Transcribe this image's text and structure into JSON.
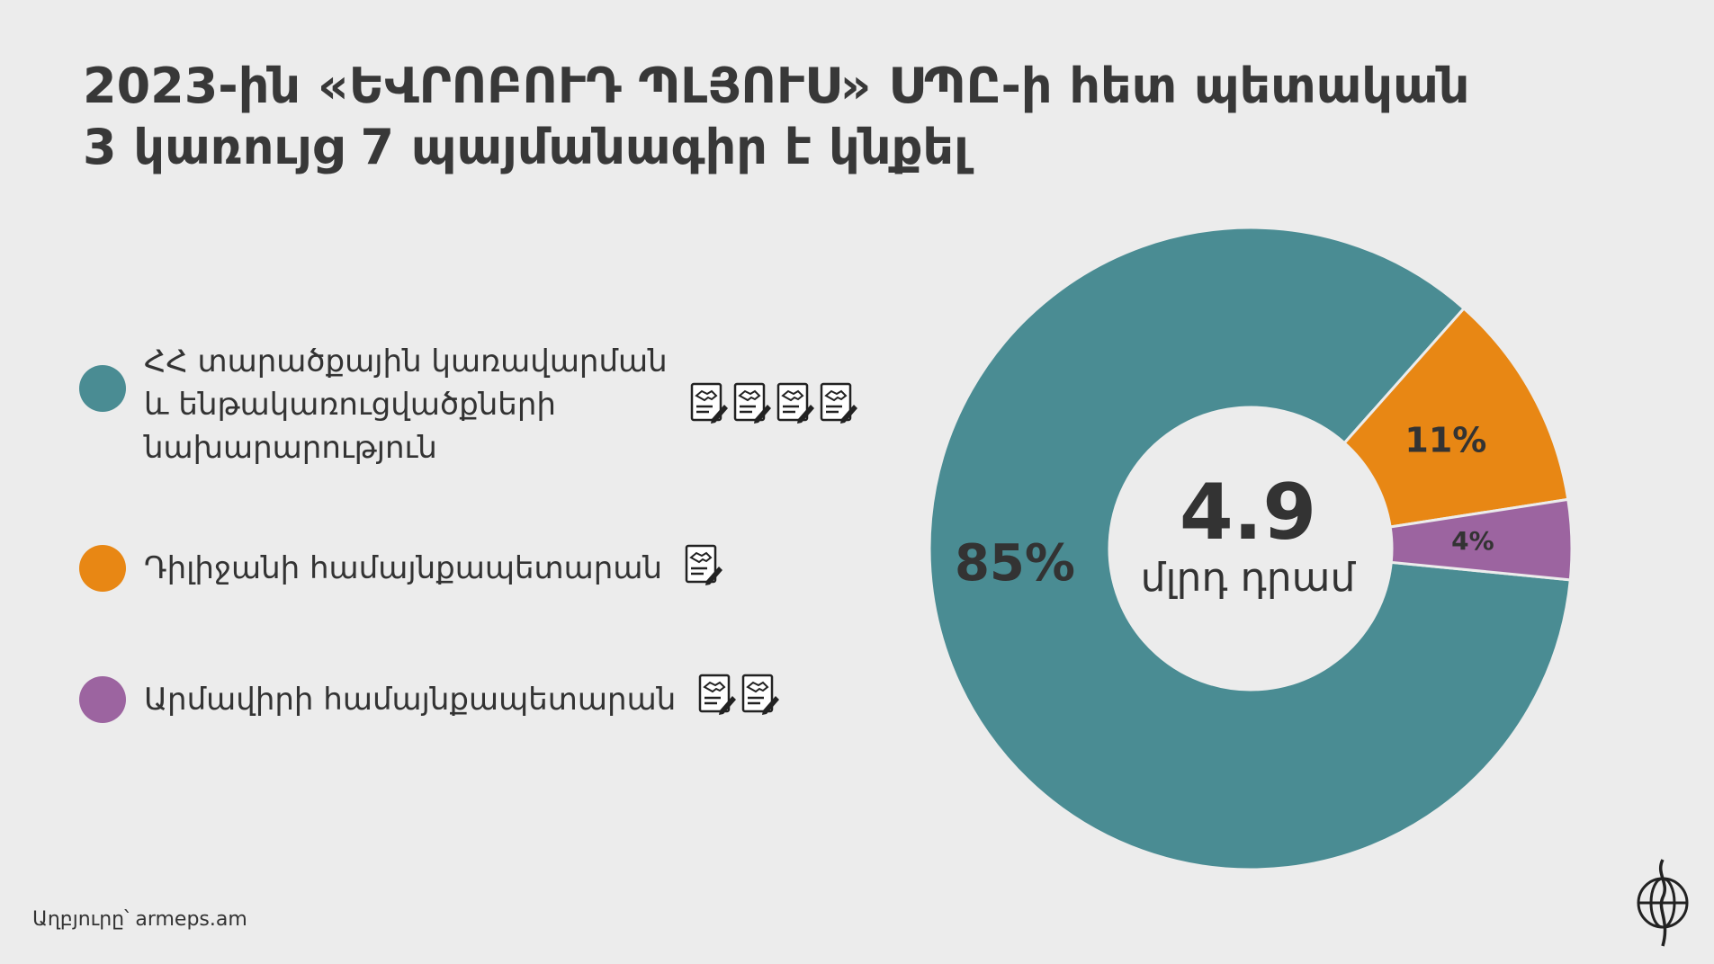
{
  "title": {
    "line1": "2023-ին «ԵՎՐՈԲՈՒԴ ՊԼՅՈՒՍ» ՍՊԸ-ի հետ պետական",
    "line2": "3 կառույց 7 պայմանագիր է կնքել"
  },
  "center": {
    "value": "4.9",
    "unit": "մլրդ դրամ"
  },
  "source": "Աղբյուրը՝ armeps.am",
  "icons": {
    "contract": "contract-handshake-pen-icon",
    "logo": "brand-logo-icon"
  },
  "colors": {
    "teal": "#4a8c93",
    "orange": "#e88714",
    "purple": "#9c64a0",
    "background": "#ececec",
    "text": "#333333"
  },
  "chart_data": {
    "type": "pie",
    "donut": true,
    "series": [
      {
        "label_lines": [
          "ՀՀ տարածքային կառավարման",
          "և ենթակառուցվածքների",
          "նախարարություն"
        ],
        "value": 85,
        "value_label": "85%",
        "contracts": 4,
        "color": "#4a8c93"
      },
      {
        "label_lines": [
          "Դիլիջանի համայնքապետարան"
        ],
        "value": 11,
        "value_label": "11%",
        "contracts": 1,
        "color": "#e88714"
      },
      {
        "label_lines": [
          "Արմավիրի համայնքապետարան"
        ],
        "value": 4,
        "value_label": "4%",
        "contracts": 2,
        "color": "#9c64a0"
      }
    ],
    "total_label": "4.9 մլրդ դրամ",
    "legend_position": "left"
  }
}
